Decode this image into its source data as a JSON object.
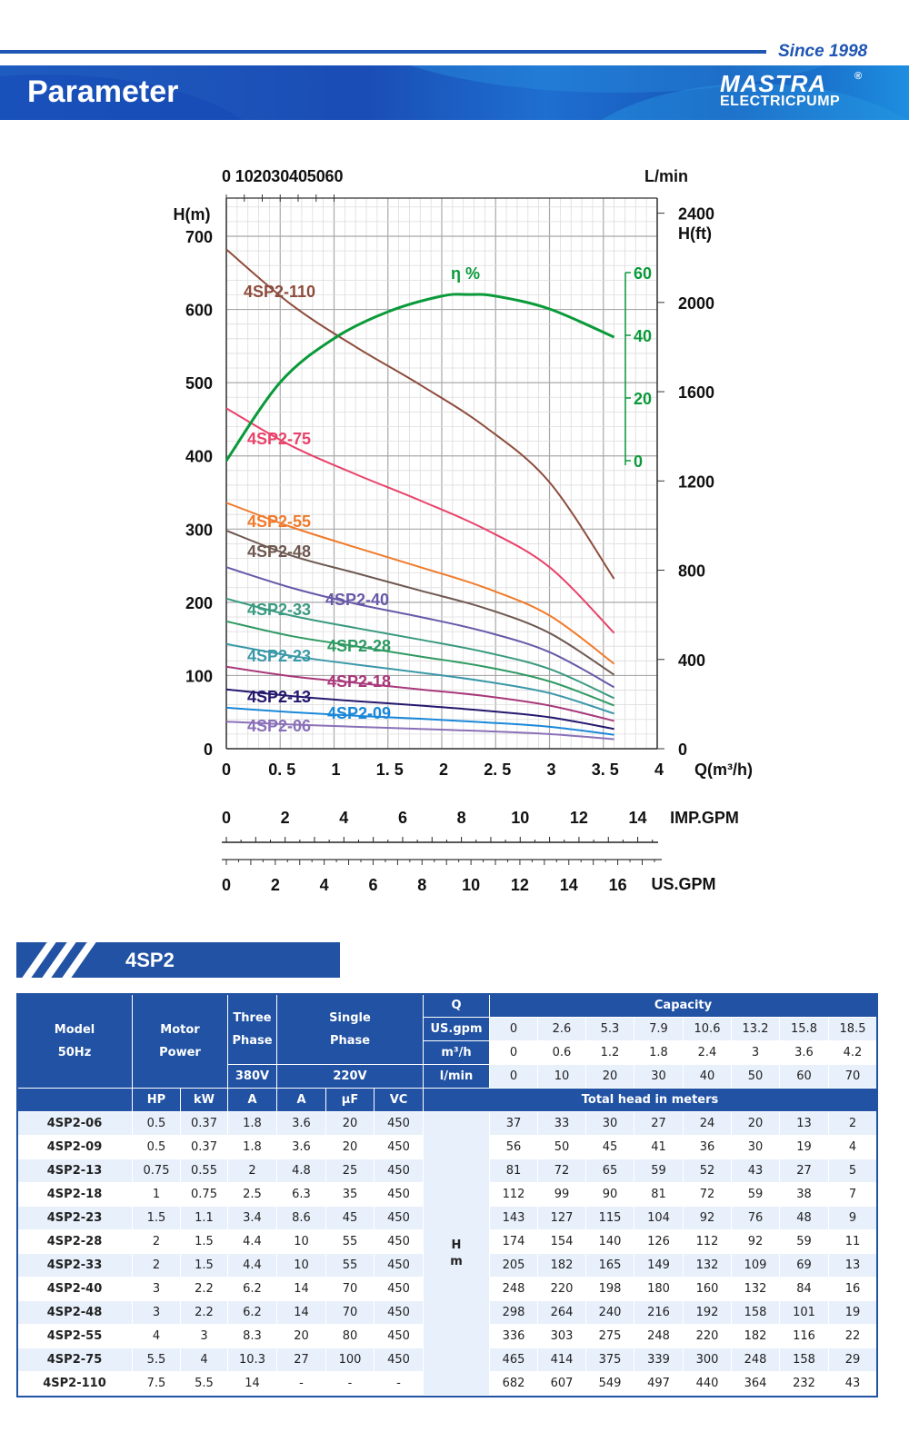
{
  "header": {
    "since": "Since 1998",
    "title": "Parameter",
    "logo_mark": "MASTRA",
    "logo_sub": "ELECTRICPUMP",
    "logo_reg": "®"
  },
  "chart_data": {
    "type": "line",
    "x_label": "Q(m³/h)",
    "x_ticks": [
      "0",
      "0. 5",
      "1",
      "1. 5",
      "2",
      "2. 5",
      "3",
      "3. 5",
      "4"
    ],
    "x_range": [
      0,
      4
    ],
    "top_axis": {
      "label": "L/min",
      "ticks": [
        "0",
        "10",
        "20",
        "30",
        "40",
        "50",
        "60"
      ]
    },
    "y_label": "H(m)",
    "y_range": [
      0,
      700
    ],
    "y_ticks": [
      "0",
      "100",
      "200",
      "300",
      "400",
      "500",
      "600",
      "700"
    ],
    "y2_label": "H(ft)",
    "y2_ticks": [
      "0",
      "400",
      "800",
      "1200",
      "1600",
      "2000",
      "2400"
    ],
    "eff_axis": {
      "label": "η %",
      "ticks": [
        "0",
        "20",
        "40",
        "60"
      ]
    },
    "imp_axis": {
      "label": "IMP.GPM",
      "ticks": [
        "0",
        "2",
        "4",
        "6",
        "8",
        "10",
        "12",
        "14"
      ]
    },
    "us_axis": {
      "label": "US.GPM",
      "ticks": [
        "0",
        "2",
        "4",
        "6",
        "8",
        "10",
        "12",
        "14",
        "16"
      ]
    },
    "grid": true,
    "x": [
      0,
      0.6,
      1.2,
      1.8,
      2.4,
      3.0,
      3.6
    ],
    "series": [
      {
        "name": "4SP2-110",
        "color": "#8e4c3c",
        "values": [
          682,
          607,
          549,
          497,
          440,
          364,
          232
        ]
      },
      {
        "name": "4SP2-75",
        "color": "#e8436a",
        "values": [
          465,
          414,
          375,
          339,
          300,
          248,
          158
        ]
      },
      {
        "name": "4SP2-55",
        "color": "#f07a2a",
        "values": [
          336,
          303,
          275,
          248,
          220,
          182,
          116
        ]
      },
      {
        "name": "4SP2-48",
        "color": "#6e5850",
        "values": [
          298,
          264,
          240,
          216,
          192,
          158,
          101
        ]
      },
      {
        "name": "4SP2-40",
        "color": "#6858a8",
        "values": [
          248,
          220,
          198,
          180,
          160,
          132,
          84
        ]
      },
      {
        "name": "4SP2-33",
        "color": "#3a9a80",
        "values": [
          205,
          182,
          165,
          149,
          132,
          109,
          69
        ]
      },
      {
        "name": "4SP2-28",
        "color": "#2f9a62",
        "values": [
          174,
          154,
          140,
          126,
          112,
          92,
          59
        ]
      },
      {
        "name": "4SP2-23",
        "color": "#3a98a8",
        "values": [
          143,
          127,
          115,
          104,
          92,
          76,
          48
        ]
      },
      {
        "name": "4SP2-18",
        "color": "#a8387a",
        "values": [
          112,
          99,
          90,
          81,
          72,
          59,
          38
        ]
      },
      {
        "name": "4SP2-13",
        "color": "#24186e",
        "values": [
          81,
          72,
          65,
          59,
          52,
          43,
          27
        ]
      },
      {
        "name": "4SP2-09",
        "color": "#1a88d8",
        "values": [
          56,
          50,
          45,
          41,
          36,
          30,
          19
        ]
      },
      {
        "name": "4SP2-06",
        "color": "#8a70b8",
        "values": [
          37,
          33,
          30,
          27,
          24,
          20,
          13
        ]
      }
    ],
    "efficiency": {
      "color": "#0a9a3a",
      "x": [
        0,
        0.5,
        1,
        1.5,
        2,
        2.25,
        2.5,
        3,
        3.6
      ],
      "values": [
        0,
        25,
        39,
        47.5,
        52.5,
        53,
        52.5,
        48.4,
        39.4
      ]
    }
  },
  "table": {
    "section_title": "4SP2",
    "h_model": "Model",
    "h_50hz": "50Hz",
    "h_motor": "Motor",
    "h_power": "Power",
    "h_three": "Three",
    "h_phase": "Phase",
    "h_single": "Single",
    "h_phase2": "Phase",
    "h_q": "Q",
    "h_capacity": "Capacity",
    "h_380": "380V",
    "h_220": "220V",
    "units": [
      "US.gpm",
      "m³/h",
      "l/min"
    ],
    "capacity": [
      [
        "0",
        "2.6",
        "5.3",
        "7.9",
        "10.6",
        "13.2",
        "15.8",
        "18.5"
      ],
      [
        "0",
        "0.6",
        "1.2",
        "1.8",
        "2.4",
        "3",
        "3.6",
        "4.2"
      ],
      [
        "0",
        "10",
        "20",
        "30",
        "40",
        "50",
        "60",
        "70"
      ]
    ],
    "sub_headers": [
      "HP",
      "kW",
      "A",
      "A",
      "µF",
      "VC"
    ],
    "total_head": "Total head in meters",
    "h_hm": "H\nm",
    "rows": [
      [
        "4SP2-06",
        "0.5",
        "0.37",
        "1.8",
        "3.6",
        "20",
        "450",
        "37",
        "33",
        "30",
        "27",
        "24",
        "20",
        "13",
        "2"
      ],
      [
        "4SP2-09",
        "0.5",
        "0.37",
        "1.8",
        "3.6",
        "20",
        "450",
        "56",
        "50",
        "45",
        "41",
        "36",
        "30",
        "19",
        "4"
      ],
      [
        "4SP2-13",
        "0.75",
        "0.55",
        "2",
        "4.8",
        "25",
        "450",
        "81",
        "72",
        "65",
        "59",
        "52",
        "43",
        "27",
        "5"
      ],
      [
        "4SP2-18",
        "1",
        "0.75",
        "2.5",
        "6.3",
        "35",
        "450",
        "112",
        "99",
        "90",
        "81",
        "72",
        "59",
        "38",
        "7"
      ],
      [
        "4SP2-23",
        "1.5",
        "1.1",
        "3.4",
        "8.6",
        "45",
        "450",
        "143",
        "127",
        "115",
        "104",
        "92",
        "76",
        "48",
        "9"
      ],
      [
        "4SP2-28",
        "2",
        "1.5",
        "4.4",
        "10",
        "55",
        "450",
        "174",
        "154",
        "140",
        "126",
        "112",
        "92",
        "59",
        "11"
      ],
      [
        "4SP2-33",
        "2",
        "1.5",
        "4.4",
        "10",
        "55",
        "450",
        "205",
        "182",
        "165",
        "149",
        "132",
        "109",
        "69",
        "13"
      ],
      [
        "4SP2-40",
        "3",
        "2.2",
        "6.2",
        "14",
        "70",
        "450",
        "248",
        "220",
        "198",
        "180",
        "160",
        "132",
        "84",
        "16"
      ],
      [
        "4SP2-48",
        "3",
        "2.2",
        "6.2",
        "14",
        "70",
        "450",
        "298",
        "264",
        "240",
        "216",
        "192",
        "158",
        "101",
        "19"
      ],
      [
        "4SP2-55",
        "4",
        "3",
        "8.3",
        "20",
        "80",
        "450",
        "336",
        "303",
        "275",
        "248",
        "220",
        "182",
        "116",
        "22"
      ],
      [
        "4SP2-75",
        "5.5",
        "4",
        "10.3",
        "27",
        "100",
        "450",
        "465",
        "414",
        "375",
        "339",
        "300",
        "248",
        "158",
        "29"
      ],
      [
        "4SP2-110",
        "7.5",
        "5.5",
        "14",
        "-",
        "-",
        "-",
        "682",
        "607",
        "549",
        "497",
        "440",
        "364",
        "232",
        "43"
      ]
    ]
  }
}
